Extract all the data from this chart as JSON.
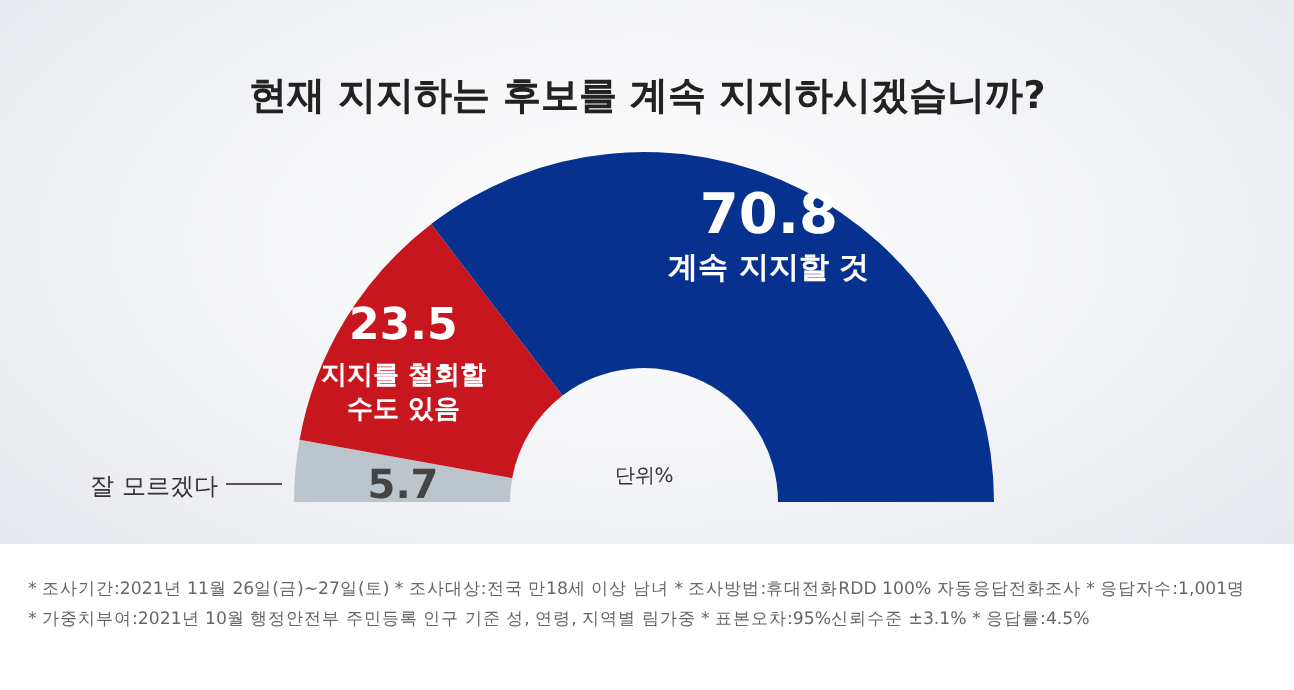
{
  "chart_data": {
    "type": "donut",
    "title": "현재 지지하는 후보를 계속 지지하시겠습니까?",
    "categories": [
      "잘 모르겠다",
      "지지를 철회할\n수도 있음",
      "계속 지지할 것"
    ],
    "values": [
      5.7,
      23.5,
      70.8
    ],
    "colors": [
      "#bcc5cc",
      "#c8161e",
      "#06318f"
    ],
    "data_labels": true,
    "annotations": [
      "단위%",
      "* 조사기간:2021년 11월 26일(금)~27일(토)  * 조사대상:전국 만18세 이상 남녀  * 조사방법:휴대전화RDD 100% 자동응답전화조사  * 응답자수:1,001명",
      "* 가중치부여:2021년 10월 행정안전부 주민등록 인구 기준 성, 연령, 지역별 림가중  * 표본오차:95%신뢰수준 ±3.1%  * 응답률:4.5%"
    ]
  }
}
